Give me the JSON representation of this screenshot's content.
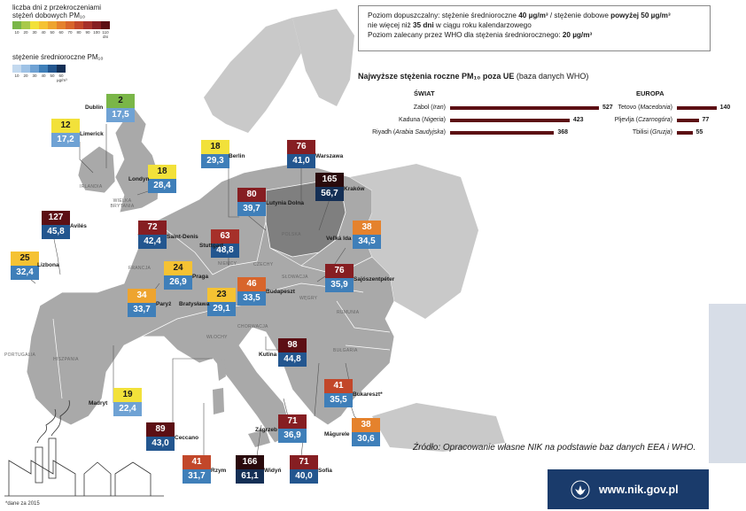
{
  "legend": {
    "days_title_1": "liczba dni z przekroczeniami",
    "days_title_2": "stężeń dobowych PM₁₀",
    "days_scale": [
      "10",
      "20",
      "30",
      "40",
      "50",
      "60",
      "70",
      "80",
      "90",
      "100",
      "110 dni"
    ],
    "days_colors": [
      "#7ab648",
      "#a8c94a",
      "#f2e13a",
      "#f5c233",
      "#eea42f",
      "#e5822d",
      "#d8652b",
      "#c2472a",
      "#a6302a",
      "#861e22",
      "#5c0f14"
    ],
    "annual_title": "stężenie średnioroczne PM₁₀",
    "annual_scale": [
      "10",
      "20",
      "30",
      "40",
      "50",
      "60 µg/m³"
    ],
    "annual_colors": [
      "#c3d9ef",
      "#9ec2e6",
      "#6fa2d4",
      "#3f7fb9",
      "#23568f",
      "#142f55"
    ]
  },
  "info": {
    "line1_pre": "Poziom dopuszczalny: stężenie średnioroczne ",
    "line1_b1": "40 µg/m³",
    "line1_mid": " / stężenie dobowe ",
    "line1_b2": "powyżej 50 µg/m³",
    "line2_pre": "nie więcej niż ",
    "line2_b": "35 dni",
    "line2_post": " w ciągu roku kalendarzowego",
    "line3_pre": "Poziom zalecany przez WHO dla stężenia średniorocznego: ",
    "line3_b": "20 µg/m³"
  },
  "ranking": {
    "title_b": "Najwyższe stężenia roczne PM₁₀ poza UE",
    "title_n": " (baza danych WHO)",
    "world_head": "ŚWIAT",
    "europe_head": "EUROPA",
    "world": [
      {
        "city": "Zabol",
        "country": "Iran",
        "value": 527
      },
      {
        "city": "Kaduna",
        "country": "Nigeria",
        "value": 423
      },
      {
        "city": "Riyadh",
        "country": "Arabia Saudyjska",
        "value": 368
      }
    ],
    "europe": [
      {
        "city": "Tetovo",
        "country": "Macedonia",
        "value": 140
      },
      {
        "city": "Pljevlja",
        "country": "Czarnogóra",
        "value": 77
      },
      {
        "city": "Tbilisi",
        "country": "Gruzja",
        "value": 55
      }
    ]
  },
  "countries": [
    "IRLANDIA",
    "WIELKA BRYTANIA",
    "FRANCJA",
    "NIEMCY",
    "POLSKA",
    "CZECHY",
    "SŁOWACJA",
    "WĘGRY",
    "RUMUNIA",
    "BUŁGARIA",
    "CHORWACJA",
    "WŁOCHY",
    "HISZPANIA",
    "PORTUGALIA"
  ],
  "cities": [
    {
      "name": "Dublin",
      "days": 2,
      "annual": "17,5",
      "dcol": "#7ab648",
      "acol": "#6fa2d4"
    },
    {
      "name": "Limerick",
      "days": 12,
      "annual": "17,2",
      "dcol": "#f2e13a",
      "acol": "#6fa2d4"
    },
    {
      "name": "Londyn",
      "days": 18,
      "annual": "28,4",
      "dcol": "#f2e13a",
      "acol": "#3f7fb9"
    },
    {
      "name": "Berlin",
      "days": 18,
      "annual": "29,3",
      "dcol": "#f2e13a",
      "acol": "#3f7fb9"
    },
    {
      "name": "Warszawa",
      "days": 76,
      "annual": "41,0",
      "dcol": "#861e22",
      "acol": "#23568f"
    },
    {
      "name": "Kraków",
      "days": 165,
      "annual": "56,7",
      "dcol": "#2a0a0c",
      "acol": "#142f55"
    },
    {
      "name": "Lutynia Dolna",
      "days": 80,
      "annual": "39,7",
      "dcol": "#861e22",
      "acol": "#3f7fb9"
    },
    {
      "name": "Avilés",
      "days": 127,
      "annual": "45,8",
      "dcol": "#5c0f14",
      "acol": "#23568f"
    },
    {
      "name": "Saint-Denis",
      "days": 72,
      "annual": "42,4",
      "dcol": "#861e22",
      "acol": "#23568f"
    },
    {
      "name": "Stuttgart",
      "days": 63,
      "annual": "48,8",
      "dcol": "#a6302a",
      "acol": "#23568f"
    },
    {
      "name": "Veľká Ida",
      "days": 38,
      "annual": "34,5",
      "dcol": "#e5822d",
      "acol": "#3f7fb9"
    },
    {
      "name": "Lizbona",
      "days": 25,
      "annual": "32,4",
      "dcol": "#f5c233",
      "acol": "#3f7fb9"
    },
    {
      "name": "Praga",
      "days": 24,
      "annual": "26,9",
      "dcol": "#f5c233",
      "acol": "#3f7fb9"
    },
    {
      "name": "Sajószentpéter",
      "days": 76,
      "annual": "35,9",
      "dcol": "#861e22",
      "acol": "#3f7fb9"
    },
    {
      "name": "Paryż",
      "days": 34,
      "annual": "33,7",
      "dcol": "#eea42f",
      "acol": "#3f7fb9"
    },
    {
      "name": "Bratysława",
      "days": 23,
      "annual": "29,1",
      "dcol": "#f5c233",
      "acol": "#3f7fb9"
    },
    {
      "name": "Budapeszt",
      "days": 46,
      "annual": "33,5",
      "dcol": "#d8652b",
      "acol": "#3f7fb9"
    },
    {
      "name": "Kutina",
      "days": 98,
      "annual": "44,8",
      "dcol": "#5c0f14",
      "acol": "#23568f"
    },
    {
      "name": "Madryt",
      "days": 19,
      "annual": "22,4",
      "dcol": "#f2e13a",
      "acol": "#6fa2d4"
    },
    {
      "name": "Bukareszt*",
      "days": 41,
      "annual": "35,5",
      "dcol": "#c2472a",
      "acol": "#3f7fb9"
    },
    {
      "name": "Ceccano",
      "days": 89,
      "annual": "43,0",
      "dcol": "#5c0f14",
      "acol": "#23568f"
    },
    {
      "name": "Zagrzeb",
      "days": 71,
      "annual": "36,9",
      "dcol": "#861e22",
      "acol": "#3f7fb9"
    },
    {
      "name": "Măgurele",
      "days": 38,
      "annual": "30,6",
      "dcol": "#e5822d",
      "acol": "#3f7fb9"
    },
    {
      "name": "Rzym",
      "days": 41,
      "annual": "31,7",
      "dcol": "#c2472a",
      "acol": "#3f7fb9"
    },
    {
      "name": "Widyń",
      "days": 166,
      "annual": "61,1",
      "dcol": "#2a0a0c",
      "acol": "#142f55"
    },
    {
      "name": "Sofia",
      "days": 71,
      "annual": "40,0",
      "dcol": "#861e22",
      "acol": "#23568f"
    }
  ],
  "source": "Źródło: Opracowanie własne NIK na podstawie baz danych EEA i WHO.",
  "logo_url": "www.nik.gov.pl",
  "footnote": "*dane za 2015"
}
